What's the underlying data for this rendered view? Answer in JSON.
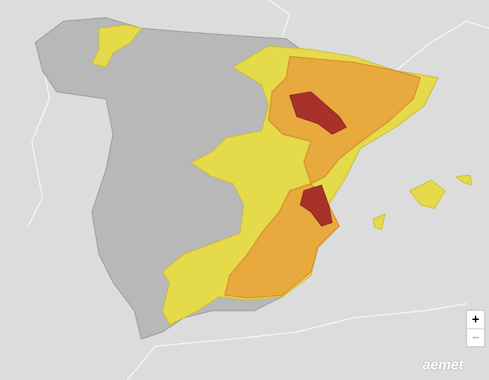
{
  "zoom_controls": {
    "zoom_in": "+",
    "zoom_out": "−"
  },
  "logo": "aemet"
}
